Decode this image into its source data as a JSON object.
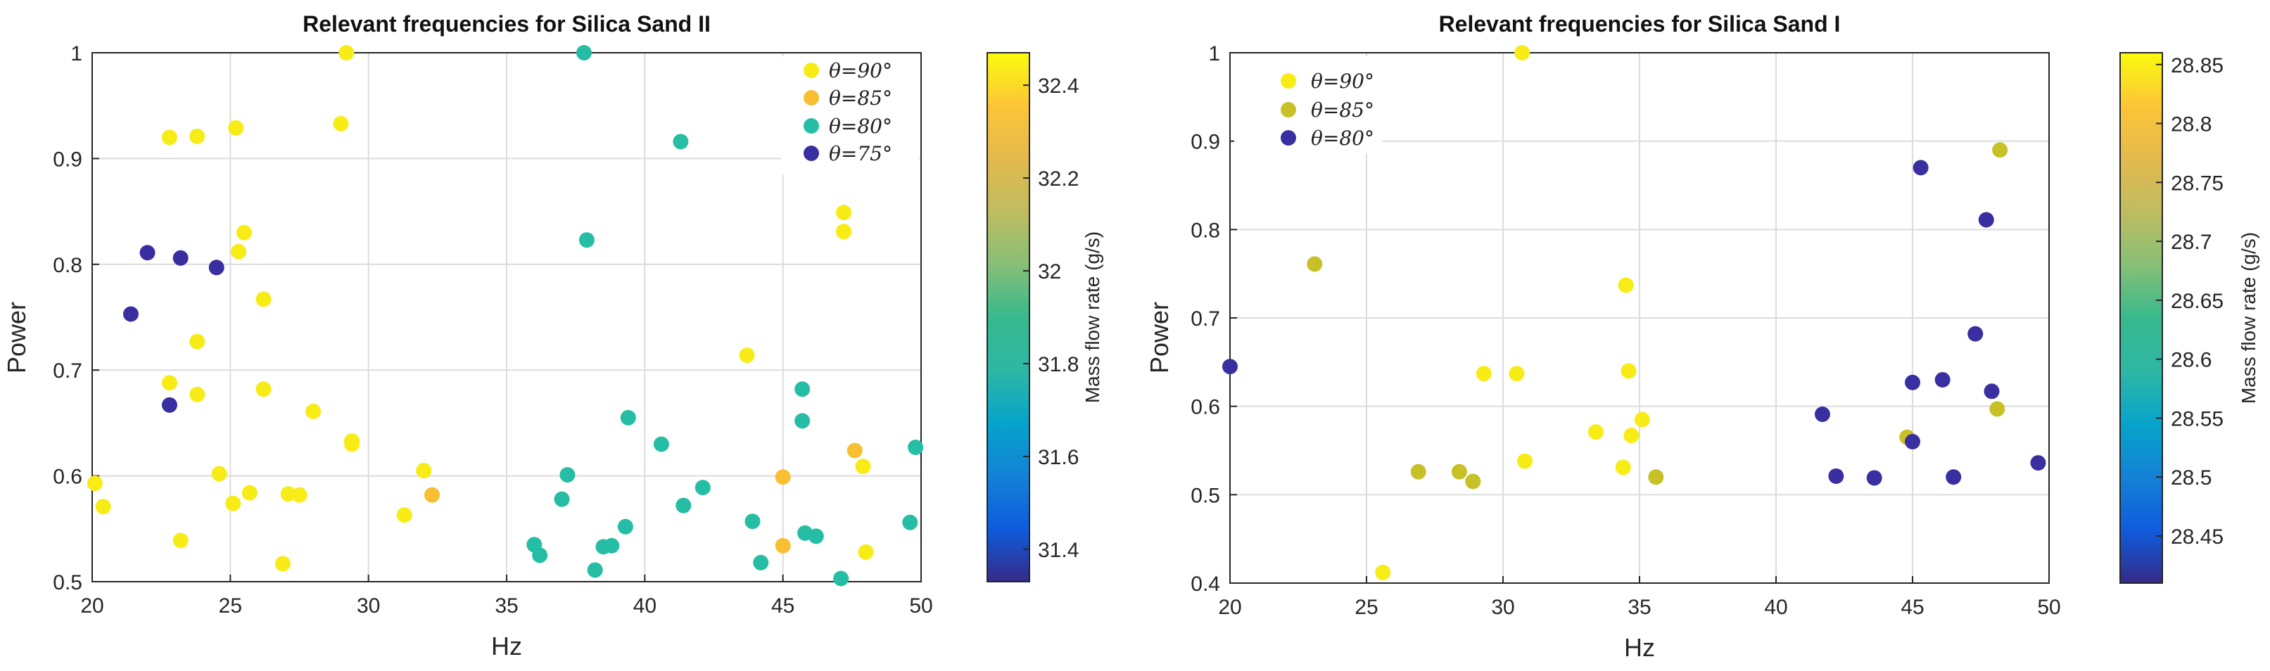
{
  "chart_data": [
    {
      "type": "scatter",
      "title": "Relevant frequencies for Silica Sand II",
      "xlabel": "Hz",
      "ylabel": "Power",
      "xlim": [
        20,
        50
      ],
      "ylim": [
        0.5,
        1
      ],
      "xticks": [
        20,
        25,
        30,
        35,
        40,
        45,
        50
      ],
      "yticks": [
        0.5,
        0.6,
        0.7,
        0.8,
        0.9,
        1
      ],
      "xtick_labels": [
        "20",
        "25",
        "30",
        "35",
        "40",
        "45",
        "50"
      ],
      "ytick_labels": [
        "0.5",
        "0.6",
        "0.7",
        "0.8",
        "0.9",
        "1"
      ],
      "grid": true,
      "legend_position": "top-right",
      "colorbar": {
        "label": "Mass flow rate (g/s)",
        "min": 31.33,
        "max": 32.47,
        "ticks": [
          31.4,
          31.6,
          31.8,
          32,
          32.2,
          32.4
        ],
        "tick_labels": [
          "31.4",
          "31.6",
          "31.8",
          "32",
          "32.2",
          "32.4"
        ]
      },
      "series": [
        {
          "name": "θ=90°",
          "color": "#f7ec16",
          "points": [
            [
              20.1,
              0.593
            ],
            [
              20.4,
              0.571
            ],
            [
              22.8,
              0.92
            ],
            [
              23.8,
              0.921
            ],
            [
              22.8,
              0.688
            ],
            [
              23.8,
              0.677
            ],
            [
              23.8,
              0.727
            ],
            [
              24.6,
              0.602
            ],
            [
              23.2,
              0.539
            ],
            [
              25.2,
              0.929
            ],
            [
              25.5,
              0.83
            ],
            [
              25.3,
              0.812
            ],
            [
              26.2,
              0.767
            ],
            [
              26.2,
              0.682
            ],
            [
              25.1,
              0.574
            ],
            [
              25.7,
              0.584
            ],
            [
              27.1,
              0.583
            ],
            [
              27.5,
              0.582
            ],
            [
              28,
              0.661
            ],
            [
              29,
              0.933
            ],
            [
              29.2,
              1
            ],
            [
              29.4,
              0.633
            ],
            [
              29.4,
              0.63
            ],
            [
              26.9,
              0.517
            ],
            [
              31.3,
              0.563
            ],
            [
              32,
              0.605
            ],
            [
              43.7,
              0.714
            ],
            [
              47.2,
              0.849
            ],
            [
              47.2,
              0.831
            ],
            [
              47.9,
              0.609
            ],
            [
              48,
              0.528
            ]
          ]
        },
        {
          "name": "θ=85°",
          "color": "#f9bf33",
          "points": [
            [
              32.3,
              0.582
            ],
            [
              45,
              0.599
            ],
            [
              45,
              0.534
            ],
            [
              47.6,
              0.624
            ]
          ]
        },
        {
          "name": "θ=80°",
          "color": "#25bea4",
          "points": [
            [
              37.8,
              1
            ],
            [
              41.3,
              0.916
            ],
            [
              37.9,
              0.823
            ],
            [
              36,
              0.535
            ],
            [
              36.2,
              0.525
            ],
            [
              37,
              0.578
            ],
            [
              37.2,
              0.601
            ],
            [
              38.2,
              0.511
            ],
            [
              38.5,
              0.533
            ],
            [
              38.8,
              0.534
            ],
            [
              39.3,
              0.552
            ],
            [
              39.4,
              0.655
            ],
            [
              40.6,
              0.63
            ],
            [
              41.4,
              0.572
            ],
            [
              42.1,
              0.589
            ],
            [
              43.9,
              0.557
            ],
            [
              44.2,
              0.518
            ],
            [
              45.7,
              0.682
            ],
            [
              45.7,
              0.652
            ],
            [
              45.8,
              0.546
            ],
            [
              46.2,
              0.543
            ],
            [
              47.1,
              0.503
            ],
            [
              49.6,
              0.556
            ],
            [
              49.8,
              0.627
            ]
          ]
        },
        {
          "name": "θ=75°",
          "color": "#3a2fa0",
          "points": [
            [
              22,
              0.811
            ],
            [
              23.2,
              0.806
            ],
            [
              24.5,
              0.797
            ],
            [
              21.4,
              0.753
            ],
            [
              22.8,
              0.667
            ]
          ]
        }
      ]
    },
    {
      "type": "scatter",
      "title": "Relevant frequencies for Silica Sand I",
      "xlabel": "Hz",
      "ylabel": "Power",
      "xlim": [
        20,
        50
      ],
      "ylim": [
        0.4,
        1
      ],
      "xticks": [
        20,
        25,
        30,
        35,
        40,
        45,
        50
      ],
      "yticks": [
        0.4,
        0.5,
        0.6,
        0.7,
        0.8,
        0.9,
        1
      ],
      "xtick_labels": [
        "20",
        "25",
        "30",
        "35",
        "40",
        "45",
        "50"
      ],
      "ytick_labels": [
        "0.4",
        "0.5",
        "0.6",
        "0.7",
        "0.8",
        "0.9",
        "1"
      ],
      "grid": true,
      "legend_position": "top-left",
      "colorbar": {
        "label": "Mass flow rate (g/s)",
        "min": 28.41,
        "max": 28.86,
        "ticks": [
          28.45,
          28.5,
          28.55,
          28.6,
          28.65,
          28.7,
          28.75,
          28.8,
          28.85
        ],
        "tick_labels": [
          "28.45",
          "28.5",
          "28.55",
          "28.6",
          "28.65",
          "28.7",
          "28.75",
          "28.8",
          "28.85"
        ]
      },
      "series": [
        {
          "name": "θ=90°",
          "color": "#f7ec16",
          "points": [
            [
              30.7,
              1
            ],
            [
              34.5,
              0.737
            ],
            [
              34.6,
              0.64
            ],
            [
              29.3,
              0.637
            ],
            [
              30.5,
              0.637
            ],
            [
              33.4,
              0.571
            ],
            [
              34.7,
              0.567
            ],
            [
              35.1,
              0.585
            ],
            [
              30.8,
              0.538
            ],
            [
              34.4,
              0.531
            ],
            [
              25.6,
              0.412
            ]
          ]
        },
        {
          "name": "θ=85°",
          "color": "#c8c027",
          "points": [
            [
              23.1,
              0.761
            ],
            [
              26.9,
              0.526
            ],
            [
              28.4,
              0.526
            ],
            [
              28.9,
              0.515
            ],
            [
              35.6,
              0.52
            ],
            [
              44.8,
              0.565
            ],
            [
              48.1,
              0.597
            ],
            [
              48.2,
              0.89
            ]
          ]
        },
        {
          "name": "θ=80°",
          "color": "#3a2fa0",
          "points": [
            [
              20,
              0.645
            ],
            [
              41.7,
              0.591
            ],
            [
              42.2,
              0.521
            ],
            [
              43.6,
              0.519
            ],
            [
              45,
              0.627
            ],
            [
              45,
              0.56
            ],
            [
              45.3,
              0.87
            ],
            [
              46.1,
              0.63
            ],
            [
              46.5,
              0.52
            ],
            [
              47.3,
              0.682
            ],
            [
              47.7,
              0.811
            ],
            [
              47.9,
              0.617
            ],
            [
              49.6,
              0.536
            ]
          ]
        }
      ]
    }
  ]
}
